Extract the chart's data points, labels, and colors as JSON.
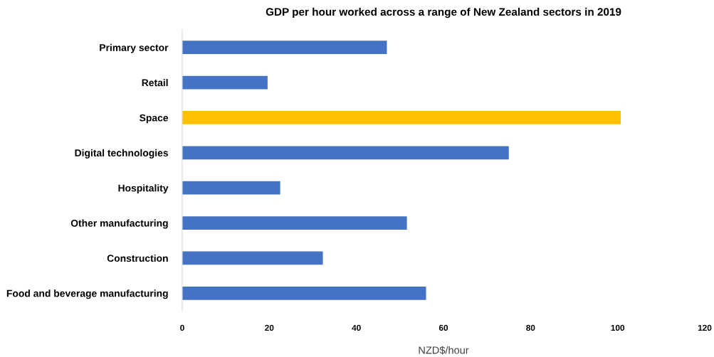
{
  "chart_data": {
    "type": "bar",
    "orientation": "horizontal",
    "title": "GDP per hour worked across a range of New Zealand sectors in 2019",
    "xlabel": "NZD$/hour",
    "categories": [
      "Primary sector",
      "Retail",
      "Space",
      "Digital technologies",
      "Hospitality",
      "Other manufacturing",
      "Construction",
      "Food and beverage manufacturing"
    ],
    "values": [
      47,
      19.6,
      100.7,
      75,
      22.5,
      51.6,
      32.3,
      56
    ],
    "colors": [
      "#4472c4",
      "#4472c4",
      "#ffc000",
      "#4472c4",
      "#4472c4",
      "#4472c4",
      "#4472c4",
      "#4472c4"
    ],
    "xlim": [
      0,
      120
    ],
    "xticks": [
      0,
      20,
      40,
      60,
      80,
      100,
      120
    ],
    "grid": false,
    "legend": false
  }
}
